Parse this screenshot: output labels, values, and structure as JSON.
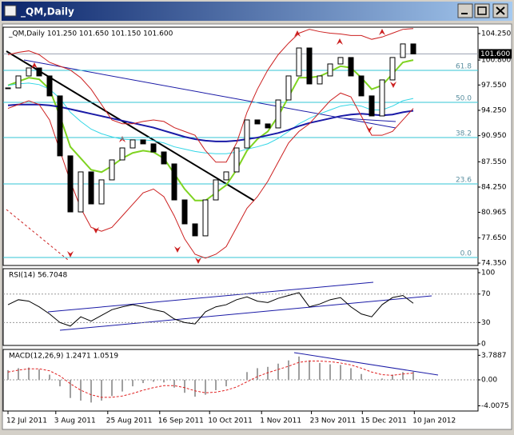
{
  "window": {
    "title": "_QM,Daily"
  },
  "chart_data": [
    {
      "type": "candlestick",
      "title": "_QM,Daily 101.250 101.650 101.150 101.600",
      "bull_color": "#ffffff",
      "bear_color": "#000000",
      "close": [
        97.17,
        98.73,
        99.77,
        98.73,
        96.13,
        88.32,
        81.02,
        86.23,
        82.06,
        85.19,
        87.79,
        89.35,
        90.4,
        89.88,
        88.83,
        87.27,
        82.58,
        79.46,
        77.9,
        82.58,
        85.19,
        86.23,
        89.35,
        93.0,
        92.48,
        91.96,
        95.6,
        98.73,
        102.37,
        97.69,
        98.73,
        100.29,
        101.13,
        98.73,
        96.13,
        93.52,
        98.21,
        101.13,
        102.9,
        101.6
      ],
      "overlays": [
        {
          "color": "#7fd321",
          "values": [
            97.5,
            98.0,
            98.5,
            98.3,
            97.0,
            93.5,
            89.5,
            88.0,
            86.5,
            86.2,
            87.0,
            88.0,
            88.7,
            89.0,
            88.8,
            88.0,
            86.0,
            84.0,
            82.5,
            82.5,
            83.5,
            84.5,
            86.5,
            89.0,
            90.5,
            91.5,
            93.5,
            96.0,
            98.5,
            98.5,
            98.7,
            99.3,
            100.0,
            99.8,
            98.5,
            97.0,
            97.5,
            99.0,
            100.5,
            100.8
          ]
        },
        {
          "color": "#33d6e6",
          "values": [
            97.5,
            97.7,
            97.8,
            97.6,
            97.0,
            95.8,
            94.0,
            92.8,
            91.8,
            91.2,
            90.8,
            90.5,
            90.4,
            90.4,
            90.3,
            90.0,
            89.5,
            89.2,
            88.9,
            88.7,
            88.6,
            88.6,
            88.8,
            89.2,
            89.5,
            89.9,
            90.6,
            91.5,
            92.5,
            93.2,
            93.8,
            94.3,
            94.8,
            95.0,
            94.8,
            94.3,
            94.3,
            94.8,
            95.5,
            95.8
          ]
        },
        {
          "color": "#1a1aa6",
          "values": [
            94.9,
            95.0,
            95.0,
            95.0,
            94.9,
            94.7,
            94.4,
            94.1,
            93.8,
            93.5,
            93.2,
            92.9,
            92.6,
            92.3,
            92.0,
            91.6,
            91.2,
            90.8,
            90.5,
            90.3,
            90.2,
            90.2,
            90.3,
            90.5,
            90.7,
            91.0,
            91.3,
            91.7,
            92.2,
            92.6,
            92.9,
            93.2,
            93.5,
            93.7,
            93.8,
            93.7,
            93.6,
            93.7,
            94.0,
            94.2
          ]
        },
        {
          "color": "#cc2020",
          "values": [
            101.5,
            101.8,
            102.0,
            101.5,
            100.5,
            100.0,
            99.5,
            98.5,
            97.0,
            95.0,
            93.0,
            92.5,
            92.5,
            92.8,
            93.0,
            92.8,
            92.0,
            91.5,
            91.0,
            89.0,
            87.5,
            87.5,
            90.0,
            94.0,
            97.0,
            99.5,
            101.5,
            103.0,
            104.3,
            104.8,
            104.5,
            104.3,
            104.2,
            104.0,
            104.0,
            103.5,
            103.8,
            104.3,
            104.8,
            104.9
          ]
        },
        {
          "color": "#cc2020",
          "values": [
            94.5,
            95.0,
            95.5,
            95.0,
            93.0,
            89.0,
            85.0,
            81.5,
            79.0,
            78.5,
            79.0,
            80.5,
            82.0,
            83.5,
            84.0,
            83.0,
            80.5,
            77.5,
            75.5,
            75.0,
            75.5,
            76.5,
            79.0,
            81.5,
            83.0,
            85.0,
            87.5,
            90.0,
            91.5,
            92.5,
            94.0,
            95.5,
            96.5,
            96.0,
            93.5,
            91.0,
            91.0,
            91.5,
            93.0,
            94.5
          ]
        }
      ],
      "levels": [
        {
          "value": 99.46,
          "label": "61.8"
        },
        {
          "value": 95.29,
          "label": "50.0"
        },
        {
          "value": 90.7,
          "label": "38.2"
        },
        {
          "value": 84.67,
          "label": "23.6"
        },
        {
          "value": 75.08,
          "label": "0.0"
        }
      ],
      "level_color": "#33c6d6",
      "last_price": {
        "value": 101.6,
        "label": "101.600"
      },
      "ylim": [
        74.04,
        105.08
      ],
      "yticks": [
        {
          "value": 104.25,
          "label": "104.250"
        },
        {
          "value": 100.8,
          "label": "100.800"
        },
        {
          "value": 97.55,
          "label": "97.550"
        },
        {
          "value": 94.25,
          "label": "94.250"
        },
        {
          "value": 90.95,
          "label": "90.950"
        },
        {
          "value": 87.55,
          "label": "87.550"
        },
        {
          "value": 84.25,
          "label": "84.250"
        },
        80.965,
        {
          "value": 77.65,
          "label": "77.650"
        },
        {
          "value": 74.35,
          "label": "74.350"
        }
      ],
      "xticks": [
        {
          "value": 0,
          "label": "12 Jul 2011"
        },
        {
          "value": 4.6,
          "label": "3 Aug 2011"
        },
        {
          "value": 9.6,
          "label": "25 Aug 2011"
        },
        {
          "value": 14.6,
          "label": "16 Sep 2011"
        },
        {
          "value": 19.4,
          "label": "10 Oct 2011"
        },
        {
          "value": 24.4,
          "label": "1 Nov 2011"
        },
        {
          "value": 29.2,
          "label": "23 Nov 2011"
        },
        {
          "value": 34.1,
          "label": "15 Dec 2011"
        },
        {
          "value": 39.1,
          "label": "10 Jan 2012"
        }
      ]
    },
    {
      "type": "line",
      "title": "RSI(14) 56.7048",
      "color": "#000000",
      "values": [
        55,
        62,
        60,
        52,
        42,
        30,
        25,
        38,
        32,
        40,
        48,
        52,
        55,
        52,
        48,
        45,
        35,
        30,
        28,
        45,
        52,
        55,
        62,
        66,
        60,
        58,
        64,
        68,
        72,
        52,
        56,
        62,
        65,
        52,
        42,
        38,
        55,
        65,
        68,
        57
      ],
      "ylim": [
        -2.2,
        105.6
      ],
      "yticks": [
        100,
        70,
        30,
        0
      ]
    },
    {
      "type": "macd",
      "title": "MACD(12,26,9) 1.2471 1.0519",
      "histogram": {
        "color": "#a0a0a0",
        "values": [
          1.5,
          1.8,
          1.9,
          1.6,
          0.8,
          -1.0,
          -2.8,
          -3.2,
          -3.5,
          -3.2,
          -2.5,
          -1.8,
          -1.0,
          -0.5,
          -0.3,
          -0.4,
          -1.2,
          -2.0,
          -2.6,
          -2.3,
          -1.6,
          -1.0,
          0.0,
          1.2,
          1.8,
          2.0,
          2.5,
          3.0,
          3.6,
          3.0,
          2.6,
          2.4,
          2.3,
          1.8,
          0.9,
          0.0,
          0.2,
          0.8,
          1.2,
          1.25
        ]
      },
      "signal": {
        "color": "#e02020",
        "values": [
          1.2,
          1.5,
          1.7,
          1.7,
          1.4,
          0.6,
          -0.6,
          -1.6,
          -2.3,
          -2.7,
          -2.7,
          -2.5,
          -2.1,
          -1.6,
          -1.2,
          -0.9,
          -0.9,
          -1.2,
          -1.7,
          -2.0,
          -1.9,
          -1.6,
          -1.1,
          -0.3,
          0.5,
          1.1,
          1.6,
          2.1,
          2.7,
          2.9,
          2.9,
          2.8,
          2.6,
          2.3,
          1.8,
          1.2,
          0.8,
          0.7,
          0.9,
          1.05
        ]
      },
      "ylim": [
        -4.81,
        4.69
      ],
      "yticks": [
        3.7887,
        {
          "value": 0,
          "label": "0.00"
        },
        -4.0075
      ]
    }
  ]
}
